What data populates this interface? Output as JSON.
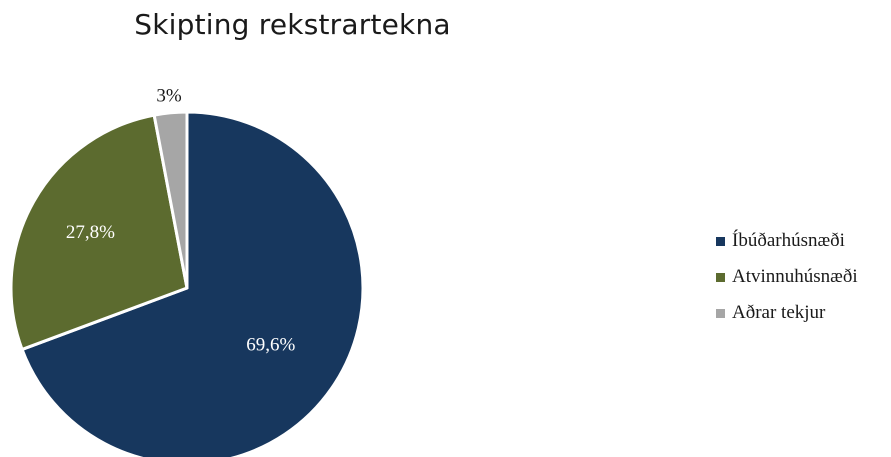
{
  "chart_data": {
    "type": "pie",
    "title": "Skipting rekstrartekna",
    "series": [
      {
        "name": "Íbúðarhúsnæði",
        "value": 69.6,
        "label": "69,6%",
        "color": "#17375e",
        "label_color": "#ffffff"
      },
      {
        "name": "Atvinnuhúsnæði",
        "value": 27.8,
        "label": "27,8%",
        "color": "#5c6b2f",
        "label_color": "#ffffff"
      },
      {
        "name": "Aðrar tekjur",
        "value": 3.0,
        "label": "3%",
        "color": "#a6a6a6",
        "label_color": "#1a1a1a"
      }
    ],
    "legend_position": "right",
    "start_angle": "top",
    "direction": "clockwise"
  }
}
